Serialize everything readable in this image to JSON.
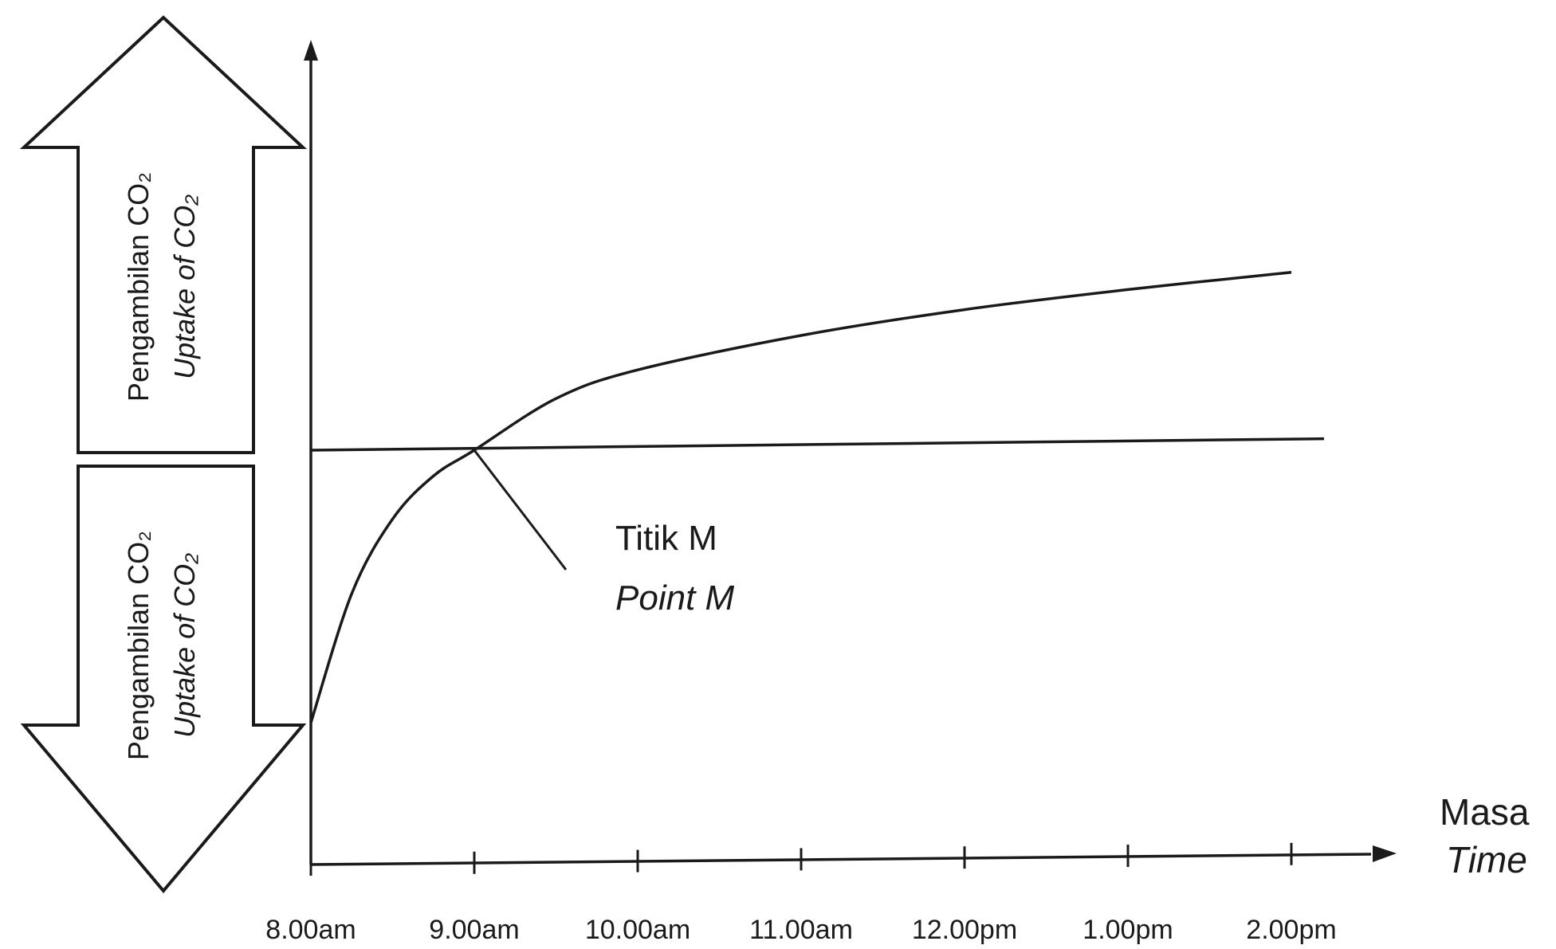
{
  "chart_data": {
    "type": "line",
    "x_ticks": [
      "8.00am",
      "9.00am",
      "10.00am",
      "11.00am",
      "12.00pm",
      "1.00pm",
      "2.00pm"
    ],
    "xlabel": {
      "primary": "Masa",
      "secondary": "Time"
    },
    "y_arrow_up": {
      "primary": "Pengambilan CO₂",
      "secondary": "Uptake of CO₂"
    },
    "y_arrow_down": {
      "primary": "Pengambilan CO₂",
      "secondary": "Uptake of CO₂"
    },
    "annotation": {
      "primary": "Titik M",
      "secondary": "Point M",
      "at_tick": "9.00am"
    },
    "series": [
      {
        "id": "curve",
        "values": [
          {
            "x": 0,
            "y": -0.95
          },
          {
            "x": 0.25,
            "y": -0.5
          },
          {
            "x": 0.5,
            "y": -0.24
          },
          {
            "x": 0.75,
            "y": -0.09
          },
          {
            "x": 1,
            "y": 0
          },
          {
            "x": 1.5,
            "y": 0.18
          },
          {
            "x": 2,
            "y": 0.28
          },
          {
            "x": 3,
            "y": 0.4
          },
          {
            "x": 4,
            "y": 0.49
          },
          {
            "x": 5,
            "y": 0.56
          },
          {
            "x": 6,
            "y": 0.62
          }
        ]
      },
      {
        "id": "reference",
        "values": [
          {
            "x": 0,
            "y": 0
          },
          {
            "x": 6.2,
            "y": 0.04
          }
        ]
      }
    ],
    "grid": false,
    "legend": "none"
  }
}
